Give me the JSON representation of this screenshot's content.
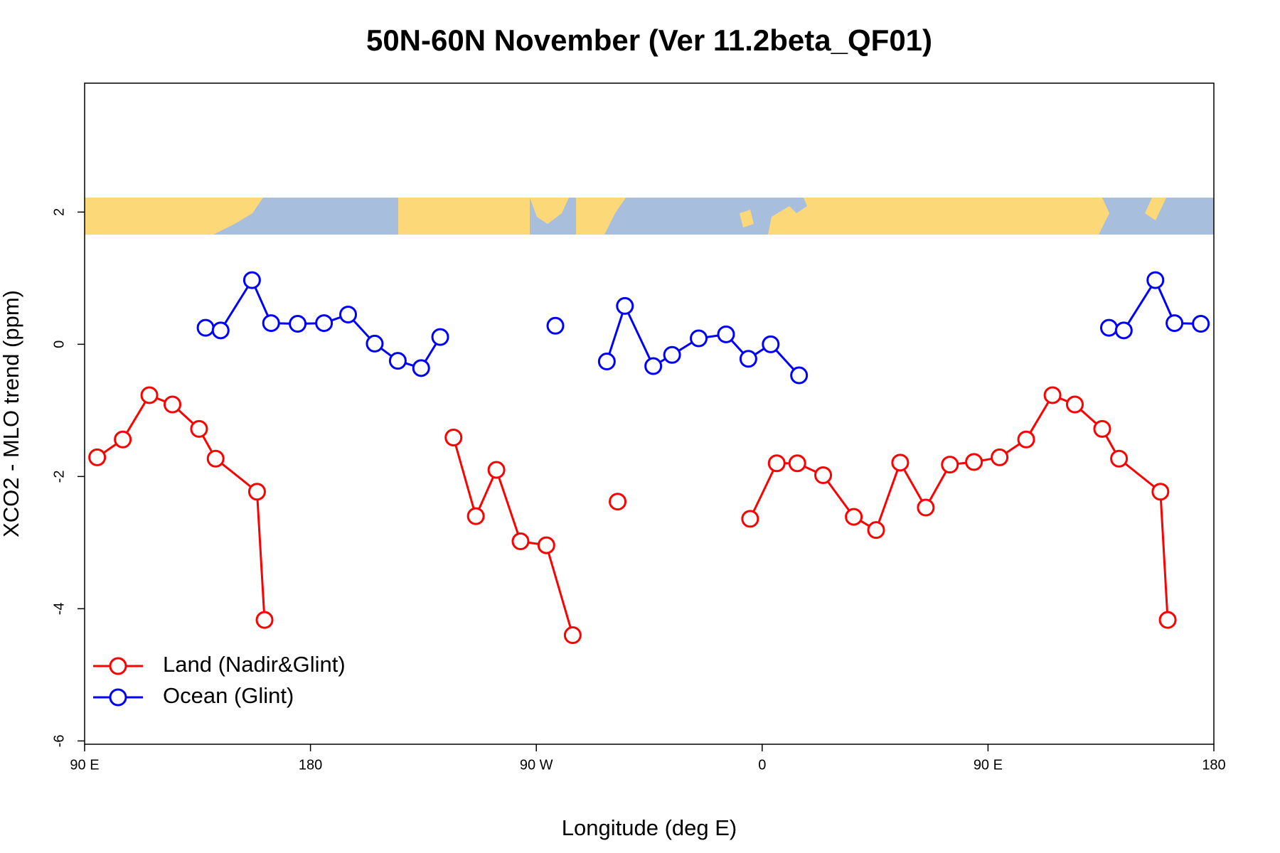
{
  "chart_data": {
    "type": "line",
    "title": "50N-60N November (Ver 11.2beta_QF01)",
    "x_label": "Longitude (deg E)",
    "y_label": "XCO2 - MLO trend (ppm)",
    "xlim": [
      90,
      540
    ],
    "ylim": [
      -6.05,
      3.95
    ],
    "xticks": [
      {
        "value": 90,
        "label": "90 E"
      },
      180,
      {
        "value": 270,
        "label": "90 W"
      },
      {
        "value": 360,
        "label": "0"
      },
      {
        "value": 450,
        "label": "90 E"
      },
      {
        "value": 540,
        "label": "180"
      }
    ],
    "yticks": [
      -6,
      -4,
      -2,
      0,
      2
    ],
    "legend": "bottom-left",
    "series": [
      {
        "name": "Land (Nadir&Glint)",
        "color": "#ff0000",
        "x": [
          95.0,
          105.2,
          115.8,
          125.0,
          135.6,
          142.2,
          158.7,
          161.7,
          null,
          237.0,
          245.9,
          254.1,
          263.7,
          274.0,
          284.5,
          null,
          302.4,
          null,
          355.2,
          365.8,
          374.0,
          384.3,
          396.5,
          405.4,
          415.0,
          425.2,
          434.8,
          444.4,
          454.6,
          465.2,
          475.7,
          484.6,
          495.5,
          502.2,
          518.7,
          521.6
        ],
        "values": [
          -1.71,
          -1.44,
          -0.77,
          -0.91,
          -1.28,
          -1.73,
          -2.23,
          -4.17,
          null,
          -1.41,
          -2.6,
          -1.9,
          -2.98,
          -3.04,
          -4.4,
          null,
          -2.38,
          null,
          -2.64,
          -1.8,
          -1.8,
          -1.98,
          -2.61,
          -2.81,
          -1.79,
          -2.47,
          -1.82,
          -1.78,
          -1.71,
          -1.44,
          -0.77,
          -0.91,
          -1.28,
          -1.73,
          -2.23,
          -4.17
        ]
      },
      {
        "name": "Ocean (Glint)",
        "color": "#0000ff",
        "x": [
          138.2,
          144.2,
          156.7,
          164.3,
          174.9,
          185.4,
          195.0,
          205.6,
          214.8,
          224.1,
          231.7,
          null,
          277.6,
          null,
          298.1,
          305.3,
          316.6,
          324.1,
          334.7,
          345.6,
          354.5,
          363.4,
          374.7,
          null,
          498.2,
          504.1,
          516.7,
          524.3,
          534.8
        ],
        "values": [
          0.25,
          0.21,
          0.97,
          0.32,
          0.31,
          0.32,
          0.45,
          0.01,
          -0.25,
          -0.36,
          0.11,
          null,
          0.28,
          null,
          -0.26,
          0.58,
          -0.33,
          -0.16,
          0.09,
          0.15,
          -0.22,
          0.0,
          -0.47,
          null,
          0.25,
          0.21,
          0.97,
          0.32,
          0.31
        ]
      }
    ]
  }
}
